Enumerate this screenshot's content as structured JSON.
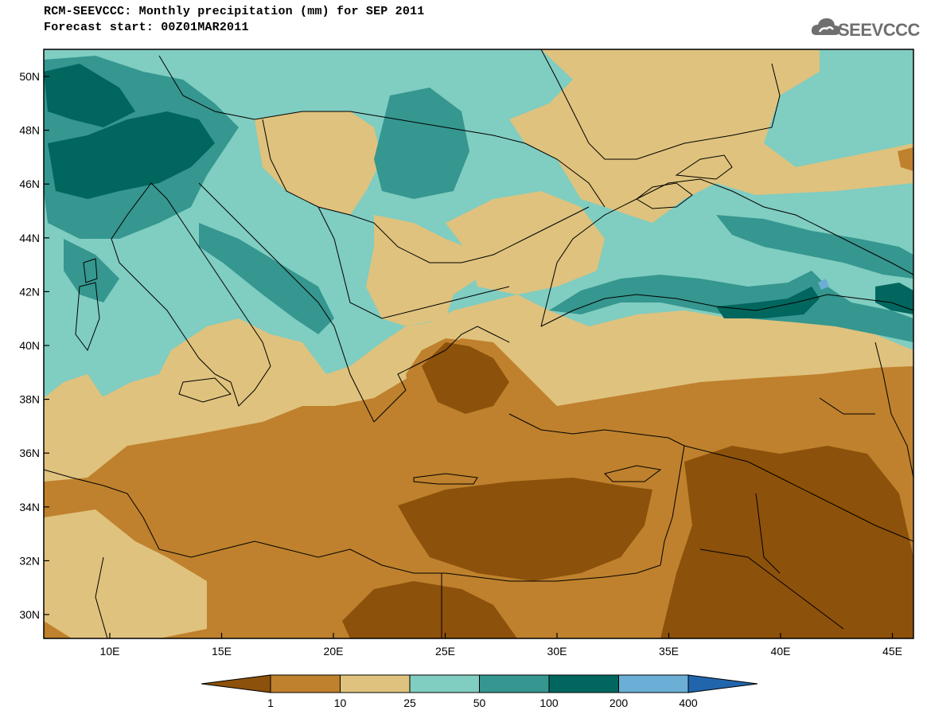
{
  "header": {
    "title": "RCM-SEEVCCC: Monthly precipitation (mm) for SEP 2011",
    "subtitle": "Forecast start: 00Z01MAR2011"
  },
  "logo": {
    "text": "SEEVCCC",
    "icon": "cloud-icon",
    "color": "#6f6f6f"
  },
  "map": {
    "lat_labels": [
      "50N",
      "48N",
      "46N",
      "44N",
      "42N",
      "40N",
      "38N",
      "36N",
      "34N",
      "32N",
      "30N"
    ],
    "lon_labels": [
      "10E",
      "15E",
      "20E",
      "25E",
      "30E",
      "35E",
      "40E",
      "45E"
    ]
  },
  "colorbar": {
    "labels": [
      "1",
      "10",
      "25",
      "50",
      "100",
      "200",
      "400"
    ],
    "colors": [
      "#8c510a",
      "#bf812d",
      "#dfc27d",
      "#80cdc1",
      "#35978f",
      "#01665e",
      "#6baed6",
      "#2166ac"
    ]
  }
}
